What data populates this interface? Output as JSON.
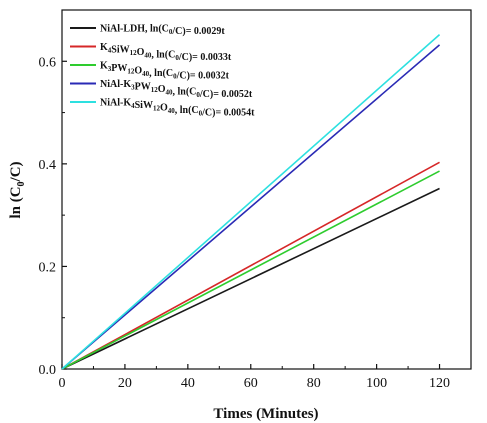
{
  "chart_data": {
    "type": "line",
    "title": "",
    "xlabel": "Times (Minutes)",
    "ylabel_parts": {
      "pre": "ln (C",
      "sub": "0",
      "post": "/C)"
    },
    "xlim": [
      0,
      130
    ],
    "ylim": [
      0,
      0.7
    ],
    "x_ticks": [
      0,
      20,
      40,
      60,
      80,
      100,
      120
    ],
    "y_ticks": [
      0.0,
      0.2,
      0.4,
      0.6
    ],
    "x_tick_labels": [
      "0",
      "20",
      "40",
      "60",
      "80",
      "100",
      "120"
    ],
    "y_tick_labels": [
      "0.0",
      "0.2",
      "0.4",
      "0.6"
    ],
    "legend_position": "top-left",
    "grid": false,
    "series": [
      {
        "color": "#1a1a1a",
        "label_parts": [
          {
            "t": "NiAl-LDH, ln(C"
          },
          {
            "t": "0",
            "sub": true
          },
          {
            "t": "/C)= 0.0029t"
          }
        ],
        "x": [
          0,
          120
        ],
        "y": [
          0,
          0.352
        ]
      },
      {
        "color": "#d62728",
        "label_parts": [
          {
            "t": "K"
          },
          {
            "t": "4",
            "sub": true
          },
          {
            "t": "SiW"
          },
          {
            "t": "12",
            "sub": true
          },
          {
            "t": "O"
          },
          {
            "t": "40",
            "sub": true
          },
          {
            "t": ", ln(C"
          },
          {
            "t": "0",
            "sub": true
          },
          {
            "t": "/C)= 0.0033t"
          }
        ],
        "x": [
          0,
          120
        ],
        "y": [
          0,
          0.403
        ]
      },
      {
        "color": "#2ecc2e",
        "label_parts": [
          {
            "t": "K"
          },
          {
            "t": "3",
            "sub": true
          },
          {
            "t": "PW"
          },
          {
            "t": "12",
            "sub": true
          },
          {
            "t": "O"
          },
          {
            "t": "40",
            "sub": true
          },
          {
            "t": ", ln(C"
          },
          {
            "t": "0",
            "sub": true
          },
          {
            "t": "/C)= 0.0032t"
          }
        ],
        "x": [
          0,
          120
        ],
        "y": [
          0,
          0.386
        ]
      },
      {
        "color": "#2a2ab5",
        "label_parts": [
          {
            "t": "NiAl-K"
          },
          {
            "t": "3",
            "sub": true
          },
          {
            "t": "PW"
          },
          {
            "t": "12",
            "sub": true
          },
          {
            "t": "O"
          },
          {
            "t": "40",
            "sub": true
          },
          {
            "t": ", ln(C"
          },
          {
            "t": "0",
            "sub": true
          },
          {
            "t": "/C)= 0.0052t"
          }
        ],
        "x": [
          0,
          120
        ],
        "y": [
          0,
          0.632
        ]
      },
      {
        "color": "#2de0e0",
        "label_parts": [
          {
            "t": "NiAl-K"
          },
          {
            "t": "4",
            "sub": true
          },
          {
            "t": "SiW"
          },
          {
            "t": "12",
            "sub": true
          },
          {
            "t": "O"
          },
          {
            "t": "40",
            "sub": true
          },
          {
            "t": ", ln(C"
          },
          {
            "t": "0",
            "sub": true
          },
          {
            "t": "/C)= 0.0054t"
          }
        ],
        "x": [
          0,
          120
        ],
        "y": [
          0,
          0.652
        ]
      }
    ]
  }
}
